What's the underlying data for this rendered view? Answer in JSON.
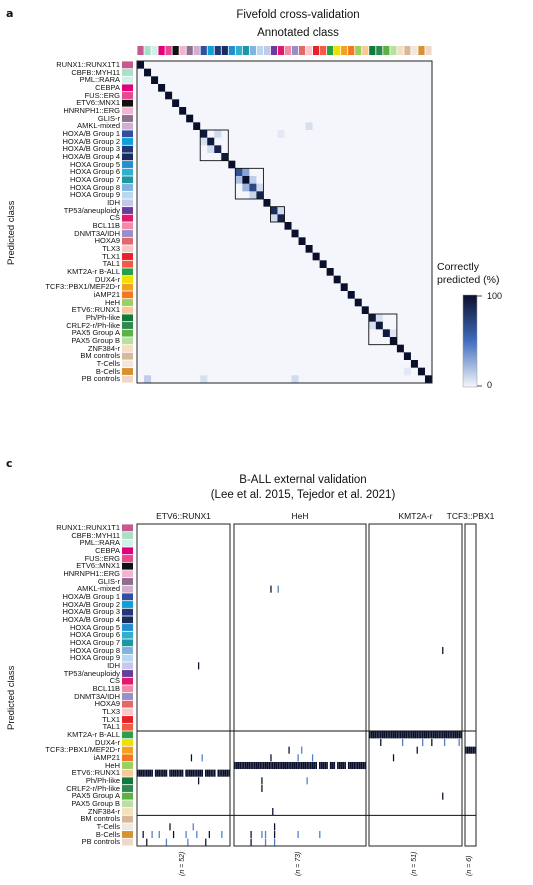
{
  "panels": {
    "a": {
      "letter": "a",
      "title": "Fivefold cross-validation",
      "subtitle": "Annotated class",
      "ylabel": "Predicted class"
    },
    "c": {
      "letter": "c",
      "title": "B-ALL external validation",
      "subtitle": "(Lee et al. 2015, Tejedor et al. 2021)",
      "ylabel": "Predicted class",
      "groups": [
        {
          "label": "ETV6::RUNX1",
          "n_label": "(n = 52)",
          "italic": true
        },
        {
          "label": "HeH",
          "n_label": "(n = 73)",
          "italic": false
        },
        {
          "label": "KMT2A-r",
          "n_label": "(n = 51)",
          "italic": true
        },
        {
          "label": "TCF3::PBX1",
          "n_label": "(n = 6)",
          "italic": true
        }
      ]
    }
  },
  "legend": {
    "title_line1": "Correctly",
    "title_line2": "predicted (%)",
    "max_label": "100",
    "min_label": "0",
    "color_low": "#f4f6fb",
    "color_high": "#0a0f2c"
  },
  "classes": [
    {
      "name": "RUNX1::RUNX1T1",
      "color": "#c35b8f"
    },
    {
      "name": "CBFB::MYH11",
      "color": "#a8e0c8"
    },
    {
      "name": "PML::RARA",
      "color": "#d2f0ea"
    },
    {
      "name": "CEBPA",
      "color": "#e0007a"
    },
    {
      "name": "FUS::ERG",
      "color": "#e9478f"
    },
    {
      "name": "ETV6::MNX1",
      "color": "#111111"
    },
    {
      "name": "HNRNPH1::ERG",
      "color": "#f1b5cf"
    },
    {
      "name": "GLIS-r",
      "color": "#8e6f92"
    },
    {
      "name": "AMKL-mixed",
      "color": "#d1b0cf"
    },
    {
      "name": "HOXA/B Group 1",
      "color": "#2f4fa0"
    },
    {
      "name": "HOXA/B Group 2",
      "color": "#10a0d8"
    },
    {
      "name": "HOXA/B Group 3",
      "color": "#203a78"
    },
    {
      "name": "HOXA/B Group 4",
      "color": "#1a2c60"
    },
    {
      "name": "HOXA Group 5",
      "color": "#238fd0"
    },
    {
      "name": "HOXA Group 6",
      "color": "#30b0cc"
    },
    {
      "name": "HOXA Group 7",
      "color": "#1e96a6"
    },
    {
      "name": "HOXA Group 8",
      "color": "#80b4e0"
    },
    {
      "name": "HOXA Group 9",
      "color": "#b8d8f0"
    },
    {
      "name": "IDH",
      "color": "#c4c8ec"
    },
    {
      "name": "TP53/aneuploidy",
      "color": "#6a3d9a"
    },
    {
      "name": "CS",
      "color": "#e31a6c"
    },
    {
      "name": "BCL11B",
      "color": "#f28ca6"
    },
    {
      "name": "DNMT3A/IDH",
      "color": "#9b8ec8"
    },
    {
      "name": "HOXA9",
      "color": "#e06a6a"
    },
    {
      "name": "TLX3",
      "color": "#f8c8c8"
    },
    {
      "name": "TLX1",
      "color": "#e8202a"
    },
    {
      "name": "TAL1",
      "color": "#f45a4a"
    },
    {
      "name": "KMT2A-r B-ALL",
      "color": "#27a046"
    },
    {
      "name": "DUX4-r",
      "color": "#f0e000"
    },
    {
      "name": "TCF3::PBX1/MEF2D-r",
      "color": "#f5a020"
    },
    {
      "name": "iAMP21",
      "color": "#f07820"
    },
    {
      "name": "HeH",
      "color": "#9ad060"
    },
    {
      "name": "ETV6::RUNX1",
      "color": "#f8c898"
    },
    {
      "name": "Ph/Ph-like",
      "color": "#0e7a3e"
    },
    {
      "name": "CRLF2-r/Ph-like",
      "color": "#2e8a4a"
    },
    {
      "name": "PAX5 Group A",
      "color": "#60b048"
    },
    {
      "name": "PAX5 Group B",
      "color": "#b8e0a0"
    },
    {
      "name": "ZNF384-r",
      "color": "#f4e0c0"
    },
    {
      "name": "BM controls",
      "color": "#d8b89a"
    },
    {
      "name": "T-Cells",
      "color": "#f0e8e0"
    },
    {
      "name": "B-Cells",
      "color": "#d89030"
    },
    {
      "name": "PB controls",
      "color": "#f0d8c8"
    }
  ],
  "chart_data": [
    {
      "type": "heatmap",
      "title": "Fivefold cross-validation",
      "xlabel": "Annotated class",
      "ylabel": "Predicted class",
      "value_label": "Correctly predicted (%)",
      "range": [
        0,
        100
      ],
      "diagonal_percent": [
        100,
        100,
        100,
        100,
        100,
        100,
        100,
        100,
        100,
        95,
        95,
        90,
        95,
        100,
        65,
        100,
        70,
        90,
        100,
        85,
        90,
        100,
        100,
        100,
        100,
        100,
        100,
        100,
        100,
        100,
        100,
        100,
        100,
        95,
        95,
        95,
        100,
        100,
        100,
        100,
        100,
        100
      ],
      "off_diagonal": [
        {
          "pred": 9,
          "ann": 11,
          "percent": 10
        },
        {
          "pred": 10,
          "ann": 9,
          "percent": 8
        },
        {
          "pred": 11,
          "ann": 10,
          "percent": 10
        },
        {
          "pred": 14,
          "ann": 15,
          "percent": 30
        },
        {
          "pred": 15,
          "ann": 14,
          "percent": 20
        },
        {
          "pred": 16,
          "ann": 15,
          "percent": 25
        },
        {
          "pred": 15,
          "ann": 16,
          "percent": 15
        },
        {
          "pred": 16,
          "ann": 17,
          "percent": 10
        },
        {
          "pred": 17,
          "ann": 16,
          "percent": 12
        },
        {
          "pred": 19,
          "ann": 20,
          "percent": 10
        },
        {
          "pred": 20,
          "ann": 19,
          "percent": 10
        },
        {
          "pred": 8,
          "ann": 24,
          "percent": 8
        },
        {
          "pred": 41,
          "ann": 1,
          "percent": 15
        },
        {
          "pred": 41,
          "ann": 9,
          "percent": 8
        },
        {
          "pred": 41,
          "ann": 22,
          "percent": 10
        },
        {
          "pred": 33,
          "ann": 34,
          "percent": 8
        },
        {
          "pred": 34,
          "ann": 33,
          "percent": 8
        },
        {
          "pred": 35,
          "ann": 36,
          "percent": 6
        },
        {
          "pred": 9,
          "ann": 20,
          "percent": 5
        },
        {
          "pred": 40,
          "ann": 38,
          "percent": 5
        }
      ]
    },
    {
      "type": "heatmap",
      "title": "B-ALL external validation",
      "ylabel": "Predicted class",
      "note": "Each column is one sample; each sample has a dominant predicted class (black) and a few secondary calls (blue).",
      "groups": [
        {
          "name": "ETV6::RUNX1",
          "n": 52,
          "dominant_class": "ETV6::RUNX1",
          "secondary": [
            {
              "class": "B-Cells",
              "samples": [
                3,
                8,
                12,
                20,
                27,
                33,
                40,
                47
              ]
            },
            {
              "class": "BM controls",
              "samples": []
            },
            {
              "class": "PB controls",
              "samples": [
                5,
                16,
                28,
                38
              ]
            },
            {
              "class": "T-Cells",
              "samples": [
                18,
                31
              ]
            },
            {
              "class": "iAMP21",
              "samples": [
                30,
                36
              ]
            },
            {
              "class": "Ph/Ph-like",
              "samples": [
                34
              ]
            },
            {
              "class": "IDH",
              "samples": [
                34
              ]
            }
          ],
          "gaps": [
            9,
            17,
            26,
            37,
            44
          ]
        },
        {
          "name": "HeH",
          "n": 73,
          "dominant_class": "HeH",
          "secondary": [
            {
              "class": "AMKL-mixed",
              "samples": [
                20,
                24
              ]
            },
            {
              "class": "iAMP21",
              "samples": [
                20,
                35,
                43
              ]
            },
            {
              "class": "TCF3::PBX1/MEF2D-r",
              "samples": [
                30,
                37
              ]
            },
            {
              "class": "Ph/Ph-like",
              "samples": [
                15,
                40
              ]
            },
            {
              "class": "CRLF2-r/Ph-like",
              "samples": [
                15
              ]
            },
            {
              "class": "ZNF384-r",
              "samples": [
                21
              ]
            },
            {
              "class": "B-Cells",
              "samples": [
                9,
                15,
                17,
                22,
                35,
                47
              ]
            },
            {
              "class": "PB controls",
              "samples": [
                9,
                17,
                22
              ]
            },
            {
              "class": "T-Cells",
              "samples": [
                22
              ]
            }
          ],
          "gaps": [
            46,
            52,
            56,
            62
          ]
        },
        {
          "name": "KMT2A-r",
          "n": 51,
          "dominant_class": "KMT2A-r B-ALL",
          "secondary": [
            {
              "class": "DUX4-r",
              "samples": [
                6,
                18,
                29,
                34,
                41,
                49
              ]
            },
            {
              "class": "iAMP21",
              "samples": [
                13
              ]
            },
            {
              "class": "PAX5 Group A",
              "samples": [
                40
              ]
            },
            {
              "class": "HOXA Group 8",
              "samples": [
                40
              ]
            },
            {
              "class": "TCF3::PBX1/MEF2D-r",
              "samples": [
                26
              ]
            }
          ],
          "gaps": []
        },
        {
          "name": "TCF3::PBX1",
          "n": 6,
          "dominant_class": "TCF3::PBX1/MEF2D-r",
          "secondary": [],
          "gaps": []
        }
      ],
      "highlight_rows": [
        "KMT2A-r B-ALL",
        "ZNF384-r"
      ]
    }
  ]
}
